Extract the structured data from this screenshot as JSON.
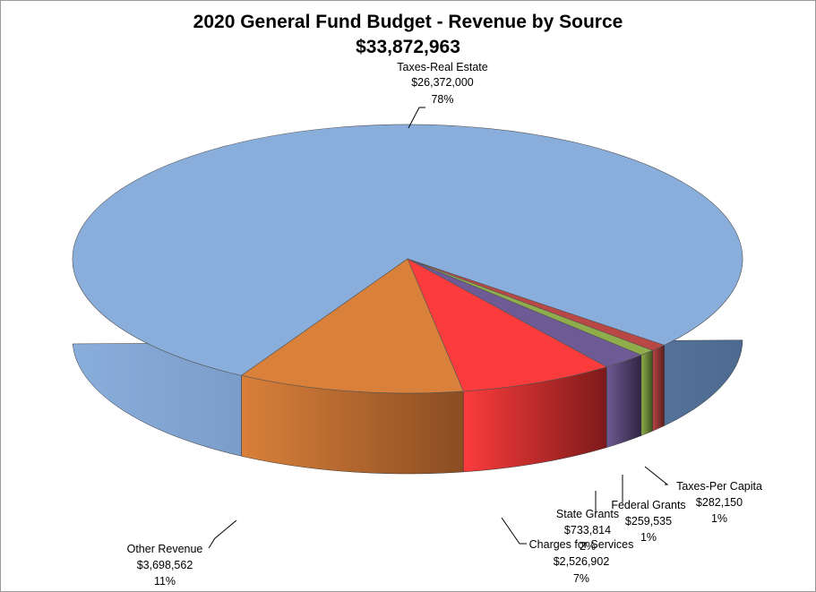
{
  "chart_data": {
    "type": "pie",
    "title": "2020 General Fund Budget - Revenue by Source",
    "subtitle": "$33,872,963",
    "slices": [
      {
        "name": "Taxes-Real Estate",
        "amount": "$26,372,000",
        "value": 26372000,
        "pct": "78%",
        "color": "#8aaedc",
        "side": "#4d6a90"
      },
      {
        "name": "Taxes-Per Capita",
        "amount": "$282,150",
        "value": 282150,
        "pct": "1%",
        "color": "#b84745",
        "side": "#5a1e1e"
      },
      {
        "name": "Federal Grants",
        "amount": "$259,535",
        "value": 259535,
        "pct": "1%",
        "color": "#8fae4b",
        "side": "#3f5220"
      },
      {
        "name": "State Grants",
        "amount": "$733,814",
        "value": 733814,
        "pct": "2%",
        "color": "#6e5a94",
        "side": "#2f2442"
      },
      {
        "name": "Charges for Services",
        "amount": "$2,526,902",
        "value": 2526902,
        "pct": "7%",
        "color": "#fc3c3c",
        "side": "#7d1a1a"
      },
      {
        "name": "Other Revenue",
        "amount": "$3,698,562",
        "value": 3698562,
        "pct": "11%",
        "color": "#d9803a",
        "side": "#8a4d22"
      }
    ]
  }
}
